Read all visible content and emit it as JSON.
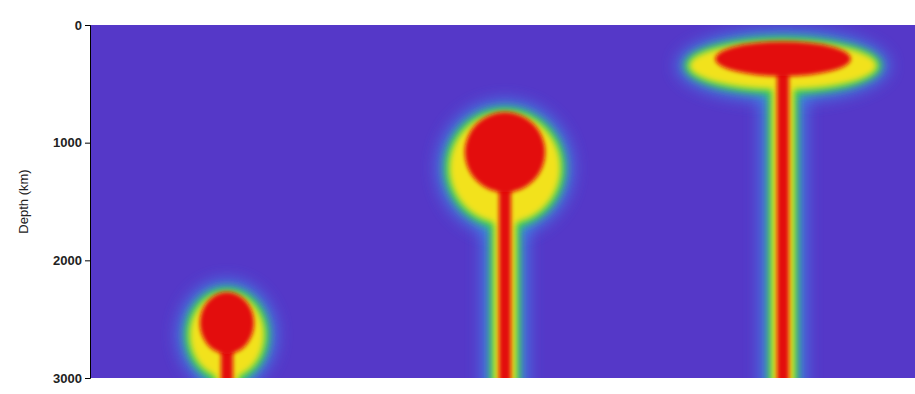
{
  "chart_data": {
    "type": "plume_model",
    "y_label": "Depth (km)",
    "ylim": [
      0,
      3000
    ],
    "yticks": [
      0,
      1000,
      2000,
      3000
    ],
    "tick_labels": "y",
    "plumes": [
      {
        "top": 2270,
        "head_bottom": 3000,
        "head_width": 640
      },
      {
        "top": 740,
        "head_bottom": 1690,
        "head_width": 950
      },
      {
        "top": 140,
        "head_bottom": 550,
        "head_width": 1600
      }
    ]
  }
}
